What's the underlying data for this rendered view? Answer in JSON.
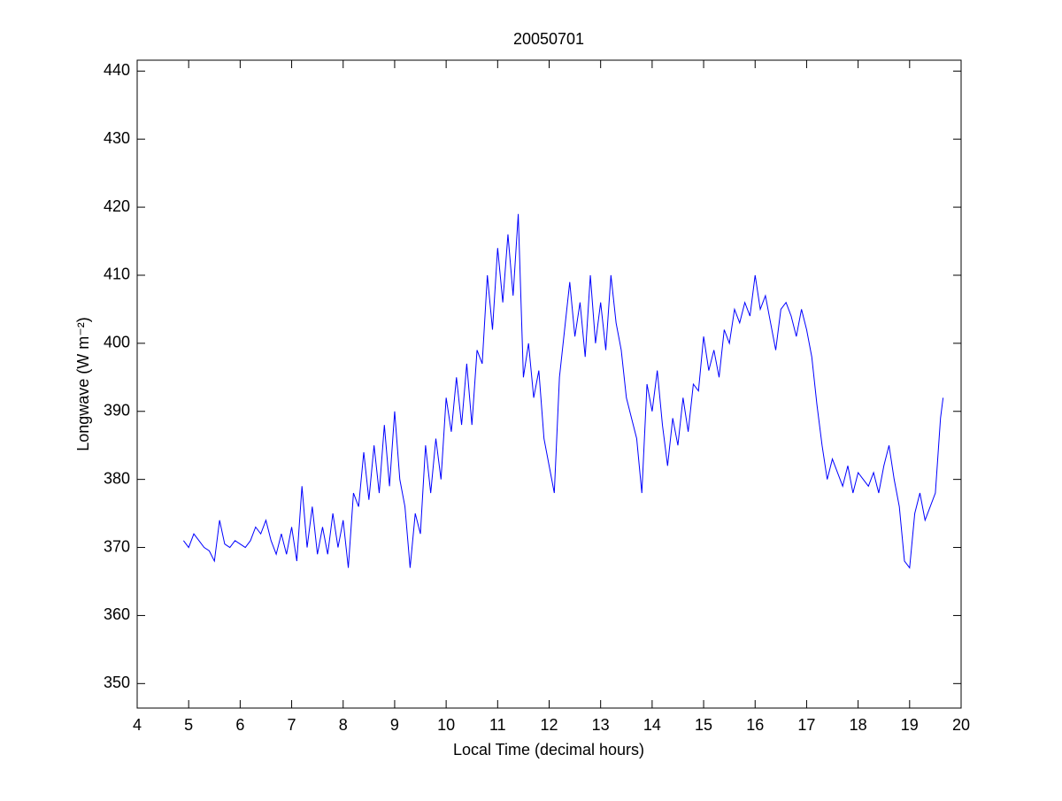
{
  "chart_data": {
    "type": "line",
    "title": "20050701",
    "x_label": "Local Time (decimal hours)",
    "y_label": "Longwave (W m⁻²)",
    "x": [
      4.9,
      5.0,
      5.1,
      5.2,
      5.3,
      5.4,
      5.5,
      5.6,
      5.7,
      5.8,
      5.9,
      6.0,
      6.1,
      6.2,
      6.3,
      6.4,
      6.5,
      6.6,
      6.7,
      6.8,
      6.9,
      7.0,
      7.1,
      7.2,
      7.3,
      7.4,
      7.5,
      7.6,
      7.7,
      7.8,
      7.9,
      8.0,
      8.1,
      8.2,
      8.3,
      8.4,
      8.5,
      8.6,
      8.7,
      8.8,
      8.9,
      9.0,
      9.1,
      9.2,
      9.3,
      9.4,
      9.5,
      9.6,
      9.7,
      9.8,
      9.9,
      10.0,
      10.1,
      10.2,
      10.3,
      10.4,
      10.5,
      10.6,
      10.7,
      10.8,
      10.9,
      11.0,
      11.1,
      11.2,
      11.3,
      11.4,
      11.5,
      11.6,
      11.7,
      11.8,
      11.9,
      12.0,
      12.1,
      12.2,
      12.3,
      12.4,
      12.5,
      12.6,
      12.7,
      12.8,
      12.9,
      13.0,
      13.1,
      13.2,
      13.3,
      13.4,
      13.5,
      13.6,
      13.7,
      13.8,
      13.9,
      14.0,
      14.1,
      14.2,
      14.3,
      14.4,
      14.5,
      14.6,
      14.7,
      14.8,
      14.9,
      15.0,
      15.1,
      15.2,
      15.3,
      15.4,
      15.5,
      15.6,
      15.7,
      15.8,
      15.9,
      16.0,
      16.1,
      16.2,
      16.3,
      16.4,
      16.5,
      16.6,
      16.7,
      16.8,
      16.9,
      17.0,
      17.1,
      17.2,
      17.3,
      17.4,
      17.5,
      17.6,
      17.7,
      17.8,
      17.9,
      18.0,
      18.1,
      18.2,
      18.3,
      18.4,
      18.5,
      18.6,
      18.7,
      18.8,
      18.9,
      19.0,
      19.1,
      19.2,
      19.3,
      19.4,
      19.5,
      19.6,
      19.65
    ],
    "series": [
      {
        "color": "#0000ff",
        "values": [
          371,
          370,
          372,
          371,
          370,
          369.5,
          368,
          374,
          370.5,
          370,
          371,
          370.5,
          370,
          371,
          373,
          372,
          374,
          371,
          369,
          372,
          369,
          373,
          368,
          379,
          370,
          376,
          369,
          373,
          369,
          375,
          370,
          374,
          367,
          378,
          376,
          384,
          377,
          385,
          378,
          388,
          379,
          390,
          380,
          376,
          367,
          375,
          372,
          385,
          378,
          386,
          380,
          392,
          387,
          395,
          388,
          397,
          388,
          399,
          397,
          410,
          402,
          414,
          406,
          416,
          407,
          419,
          395,
          400,
          392,
          396,
          386,
          382,
          378,
          395,
          402,
          409,
          401,
          406,
          398,
          410,
          400,
          406,
          399,
          410,
          403,
          399,
          392,
          389,
          386,
          378,
          394,
          390,
          396,
          388,
          382,
          389,
          385,
          392,
          387,
          394,
          393,
          401,
          396,
          399,
          395,
          402,
          400,
          405,
          403,
          406,
          404,
          410,
          405,
          407,
          403,
          399,
          405,
          406,
          404,
          401,
          405,
          402,
          398,
          391,
          385,
          380,
          383,
          381,
          379,
          382,
          378,
          381,
          380,
          379,
          381,
          378,
          382,
          385,
          380,
          376,
          368,
          367,
          375,
          378,
          374,
          376,
          378,
          389,
          392
        ]
      }
    ],
    "xlim": [
      4,
      20
    ],
    "xticks": [
      4,
      5,
      6,
      7,
      8,
      9,
      10,
      11,
      12,
      13,
      14,
      15,
      16,
      17,
      18,
      19,
      20
    ],
    "ylim": [
      346.4,
      441.6
    ],
    "yticks": [
      350,
      360,
      370,
      380,
      390,
      400,
      410,
      420,
      430,
      440
    ]
  }
}
